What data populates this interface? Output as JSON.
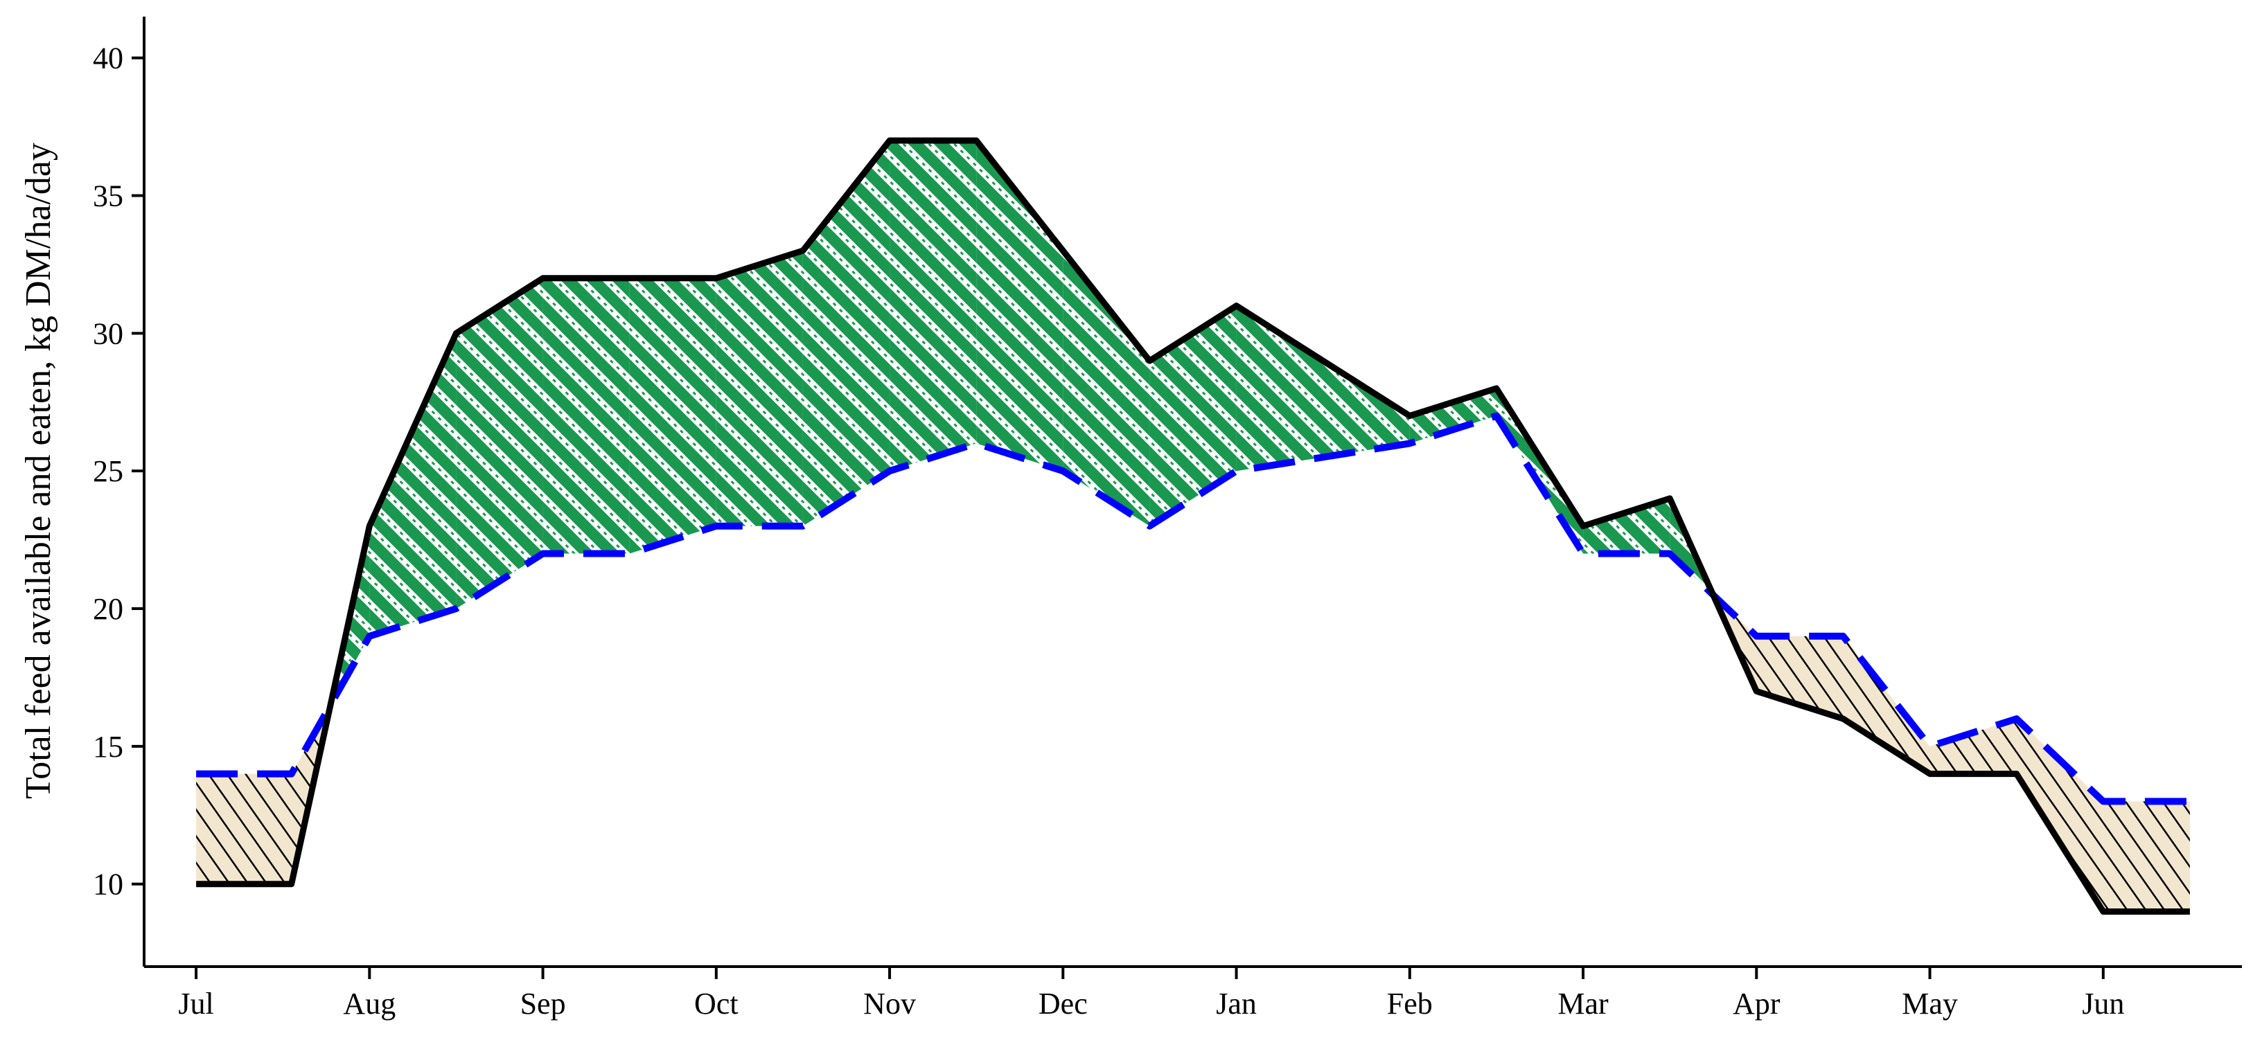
{
  "chart_data": {
    "type": "area",
    "title": "",
    "xlabel": "",
    "ylabel": "Total feed available and eaten, kg DM/ha/day",
    "x_tick_labels": [
      "Jul",
      "Aug",
      "Sep",
      "Oct",
      "Nov",
      "Dec",
      "Jan",
      "Feb",
      "Mar",
      "Apr",
      "May",
      "Jun"
    ],
    "ylim": [
      7,
      41.5
    ],
    "xlim": [
      -0.3,
      11.8
    ],
    "yticks": [
      10,
      15,
      20,
      25,
      30,
      35,
      40
    ],
    "grid": false,
    "legend": "none",
    "series": [
      {
        "style": "solid black line",
        "color": "#000000",
        "x": [
          0,
          0.55,
          1,
          1.5,
          2,
          3,
          3.5,
          4,
          4.5,
          5.5,
          6,
          7,
          7.5,
          8,
          8.5,
          9,
          9.5,
          10,
          10.5,
          11,
          11.5
        ],
        "values": [
          10,
          10,
          23,
          30,
          32,
          32,
          33,
          37,
          37,
          29,
          31,
          27,
          28,
          23,
          24,
          17,
          16,
          14,
          14,
          9,
          9
        ]
      },
      {
        "style": "dashed blue line",
        "color": "#0000ff",
        "x": [
          0,
          0.55,
          1,
          1.5,
          2,
          2.5,
          3,
          3.5,
          4,
          4.5,
          5,
          5.5,
          6,
          7,
          7.5,
          8,
          8.5,
          9,
          9.5,
          10,
          10.5,
          11,
          11.5
        ],
        "values": [
          14,
          14,
          19,
          20,
          22,
          22,
          23,
          23,
          25,
          26,
          25,
          23,
          25,
          26,
          27,
          22,
          22,
          19,
          19,
          15,
          16,
          13,
          13
        ]
      }
    ],
    "fill_colors": {
      "surplus": "#1a9850",
      "deficit": "#f3e6cf"
    }
  }
}
